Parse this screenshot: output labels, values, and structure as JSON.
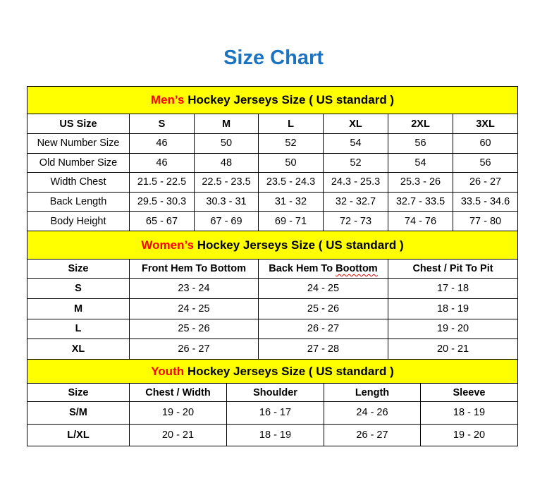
{
  "title": "Size Chart",
  "colors": {
    "title": "#1c73c0",
    "banner": "#ffff00",
    "highlight": "#ff0000"
  },
  "men": {
    "banner_highlight": "Men’s",
    "banner_rest": "Hockey Jerseys Size ( US standard )",
    "headers": [
      "US Size",
      "S",
      "M",
      "L",
      "XL",
      "2XL",
      "3XL"
    ],
    "rows": [
      [
        "New Number Size",
        "46",
        "50",
        "52",
        "54",
        "56",
        "60"
      ],
      [
        "Old Number Size",
        "46",
        "48",
        "50",
        "52",
        "54",
        "56"
      ],
      [
        "Width Chest",
        "21.5 - 22.5",
        "22.5 - 23.5",
        "23.5 - 24.3",
        "24.3 - 25.3",
        "25.3 - 26",
        "26 - 27"
      ],
      [
        "Back Length",
        "29.5 - 30.3",
        "30.3 - 31",
        "31 - 32",
        "32 - 32.7",
        "32.7 - 33.5",
        "33.5 - 34.6"
      ],
      [
        "Body Height",
        "65 - 67",
        "67 - 69",
        "69 - 71",
        "72 - 73",
        "74 - 76",
        "77 - 80"
      ]
    ]
  },
  "women": {
    "banner_highlight": "Women’s",
    "banner_rest": "Hockey Jerseys Size ( US standard )",
    "headers": [
      "Size",
      "Front Hem To Bottom",
      "Back Hem To ",
      "Chest / Pit To Pit"
    ],
    "header_misspelled_word": "Boottom",
    "rows": [
      [
        "S",
        "23 - 24",
        "24 - 25",
        "17 - 18"
      ],
      [
        "M",
        "24 - 25",
        "25 - 26",
        "18 - 19"
      ],
      [
        "L",
        "25 - 26",
        "26 - 27",
        "19 - 20"
      ],
      [
        "XL",
        "26 - 27",
        "27 - 28",
        "20 - 21"
      ]
    ]
  },
  "youth": {
    "banner_highlight": "Youth",
    "banner_rest": "Hockey Jerseys Size ( US standard )",
    "headers": [
      "Size",
      "Chest / Width",
      "Shoulder",
      "Length",
      "Sleeve"
    ],
    "rows": [
      [
        "S/M",
        "19 - 20",
        "16 - 17",
        "24 - 26",
        "18 - 19"
      ],
      [
        "L/XL",
        "20 - 21",
        "18 - 19",
        "26 - 27",
        "19 - 20"
      ]
    ]
  }
}
